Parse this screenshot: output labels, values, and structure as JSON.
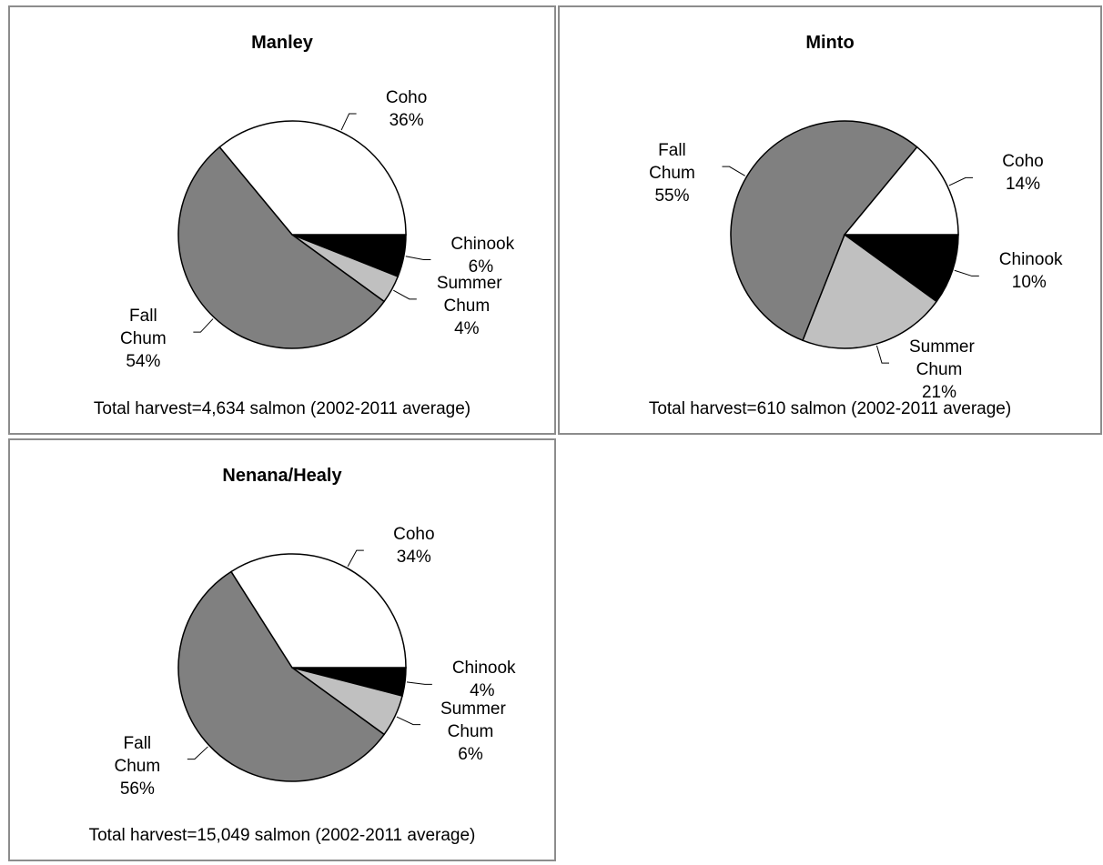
{
  "chart_data": [
    {
      "type": "pie",
      "title": "Manley",
      "note": "Total harvest=4,634 salmon (2002-2011 average)",
      "categories": [
        "Chinook",
        "Summer Chum",
        "Fall Chum",
        "Coho"
      ],
      "values": [
        6,
        4,
        54,
        36
      ],
      "value_labels": [
        "6%",
        "4%",
        "54%",
        "36%"
      ],
      "colors": [
        "#000000",
        "#c0c0c0",
        "#808080",
        "#ffffff"
      ]
    },
    {
      "type": "pie",
      "title": "Minto",
      "note": "Total harvest=610 salmon (2002-2011 average)",
      "categories": [
        "Chinook",
        "Summer Chum",
        "Fall Chum",
        "Coho"
      ],
      "values": [
        10,
        21,
        55,
        14
      ],
      "value_labels": [
        "10%",
        "21%",
        "55%",
        "14%"
      ],
      "colors": [
        "#000000",
        "#c0c0c0",
        "#808080",
        "#ffffff"
      ]
    },
    {
      "type": "pie",
      "title": "Nenana/Healy",
      "note": "Total harvest=15,049 salmon (2002-2011 average)",
      "categories": [
        "Chinook",
        "Summer Chum",
        "Fall Chum",
        "Coho"
      ],
      "values": [
        4,
        6,
        56,
        34
      ],
      "value_labels": [
        "4%",
        "6%",
        "56%",
        "34%"
      ],
      "colors": [
        "#000000",
        "#c0c0c0",
        "#808080",
        "#ffffff"
      ]
    }
  ]
}
